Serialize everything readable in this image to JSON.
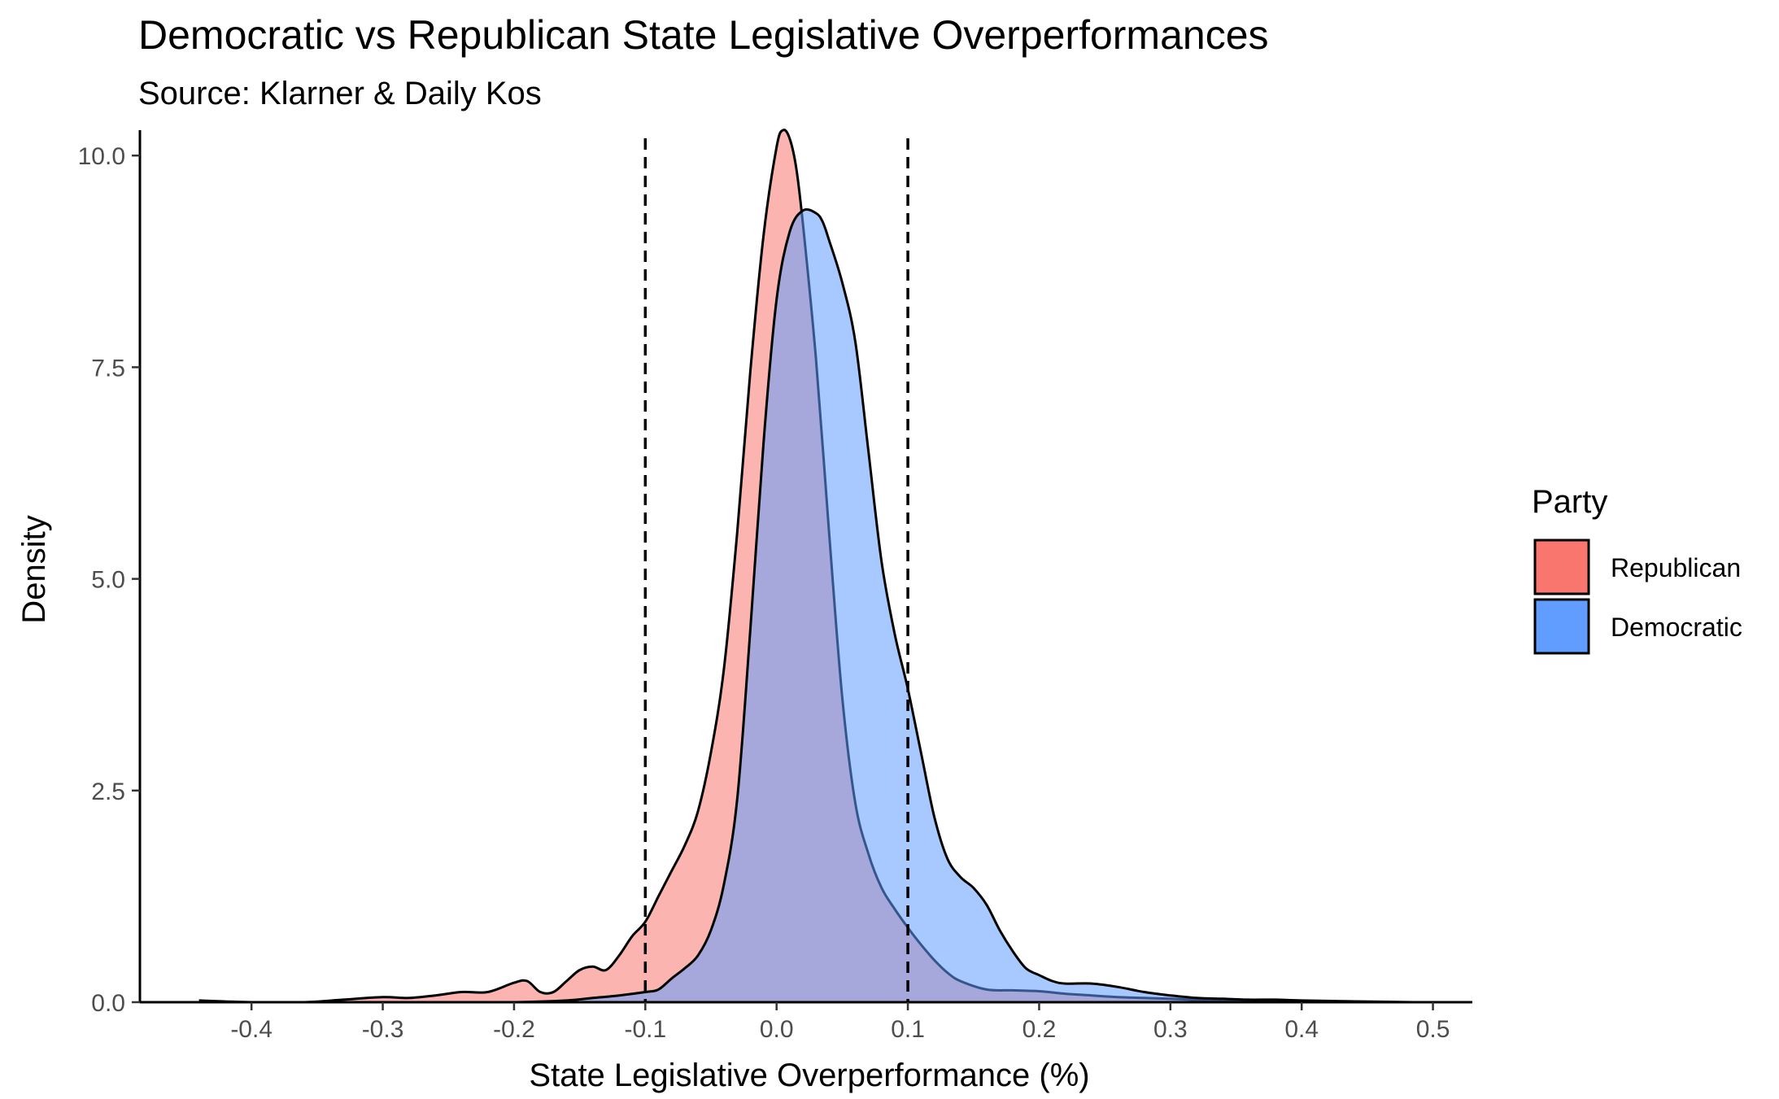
{
  "chart_data": {
    "type": "area",
    "title": "Democratic vs Republican State Legislative Overperformances",
    "subtitle": "Source: Klarner & Daily Kos",
    "xlabel": "State Legislative Overperformance (%)",
    "ylabel": "Density",
    "xlim": [
      -0.485,
      0.53
    ],
    "ylim": [
      0,
      10.3
    ],
    "x_ticks": [
      -0.4,
      -0.3,
      -0.2,
      -0.1,
      0.0,
      0.1,
      0.2,
      0.3,
      0.4,
      0.5
    ],
    "x_tick_labels": [
      "-0.4",
      "-0.3",
      "-0.2",
      "-0.1",
      "0.0",
      "0.1",
      "0.2",
      "0.3",
      "0.4",
      "0.5"
    ],
    "y_ticks": [
      0,
      2.5,
      5,
      7.5,
      10
    ],
    "y_tick_labels": [
      "0.0",
      "2.5",
      "5.0",
      "7.5",
      "10.0"
    ],
    "reference_lines_x": [
      -0.1,
      0.1
    ],
    "grid": false,
    "legend": {
      "title": "Party",
      "position": "right",
      "entries": [
        {
          "label": "Republican",
          "color": "#F8766D"
        },
        {
          "label": "Democratic",
          "color": "#619CFF"
        }
      ]
    },
    "series": [
      {
        "name": "Republican",
        "color": "#F8766D",
        "x": [
          -0.44,
          -0.4,
          -0.36,
          -0.33,
          -0.3,
          -0.28,
          -0.26,
          -0.24,
          -0.22,
          -0.2,
          -0.19,
          -0.18,
          -0.17,
          -0.16,
          -0.15,
          -0.14,
          -0.13,
          -0.12,
          -0.11,
          -0.1,
          -0.09,
          -0.08,
          -0.07,
          -0.06,
          -0.05,
          -0.04,
          -0.03,
          -0.02,
          -0.01,
          0.0,
          0.005,
          0.01,
          0.015,
          0.02,
          0.03,
          0.04,
          0.05,
          0.06,
          0.07,
          0.08,
          0.09,
          0.1,
          0.11,
          0.12,
          0.13,
          0.14,
          0.16,
          0.18,
          0.2,
          0.22,
          0.24,
          0.26,
          0.28,
          0.3,
          0.33,
          0.36,
          0.4,
          0.44,
          0.485
        ],
        "y": [
          0.02,
          0.0,
          0.0,
          0.03,
          0.06,
          0.05,
          0.08,
          0.12,
          0.12,
          0.23,
          0.25,
          0.12,
          0.12,
          0.25,
          0.38,
          0.42,
          0.38,
          0.55,
          0.78,
          0.95,
          1.25,
          1.55,
          1.85,
          2.25,
          2.95,
          3.95,
          5.55,
          7.45,
          9.05,
          10.1,
          10.3,
          10.2,
          9.85,
          9.2,
          7.6,
          5.55,
          3.6,
          2.35,
          1.75,
          1.35,
          1.1,
          0.88,
          0.68,
          0.5,
          0.35,
          0.25,
          0.15,
          0.14,
          0.13,
          0.1,
          0.08,
          0.06,
          0.05,
          0.04,
          0.02,
          0.01,
          0.0,
          0.0,
          0.0
        ]
      },
      {
        "name": "Democratic",
        "color": "#619CFF",
        "x": [
          -0.44,
          -0.35,
          -0.3,
          -0.25,
          -0.2,
          -0.16,
          -0.14,
          -0.12,
          -0.1,
          -0.09,
          -0.08,
          -0.07,
          -0.06,
          -0.05,
          -0.04,
          -0.03,
          -0.02,
          -0.01,
          0.0,
          0.01,
          0.02,
          0.03,
          0.035,
          0.04,
          0.05,
          0.06,
          0.07,
          0.08,
          0.09,
          0.1,
          0.11,
          0.12,
          0.13,
          0.14,
          0.15,
          0.16,
          0.17,
          0.18,
          0.19,
          0.2,
          0.21,
          0.22,
          0.24,
          0.26,
          0.28,
          0.3,
          0.32,
          0.34,
          0.36,
          0.38,
          0.4,
          0.44,
          0.485
        ],
        "y": [
          0.0,
          0.0,
          0.0,
          0.0,
          0.0,
          0.02,
          0.05,
          0.08,
          0.12,
          0.15,
          0.28,
          0.4,
          0.55,
          0.85,
          1.4,
          2.4,
          4.4,
          6.6,
          8.3,
          9.1,
          9.35,
          9.32,
          9.22,
          9.0,
          8.5,
          7.8,
          6.5,
          5.2,
          4.35,
          3.7,
          2.95,
          2.2,
          1.7,
          1.48,
          1.35,
          1.15,
          0.85,
          0.6,
          0.4,
          0.32,
          0.25,
          0.22,
          0.22,
          0.18,
          0.12,
          0.08,
          0.05,
          0.04,
          0.03,
          0.03,
          0.02,
          0.01,
          0.0
        ]
      }
    ]
  }
}
